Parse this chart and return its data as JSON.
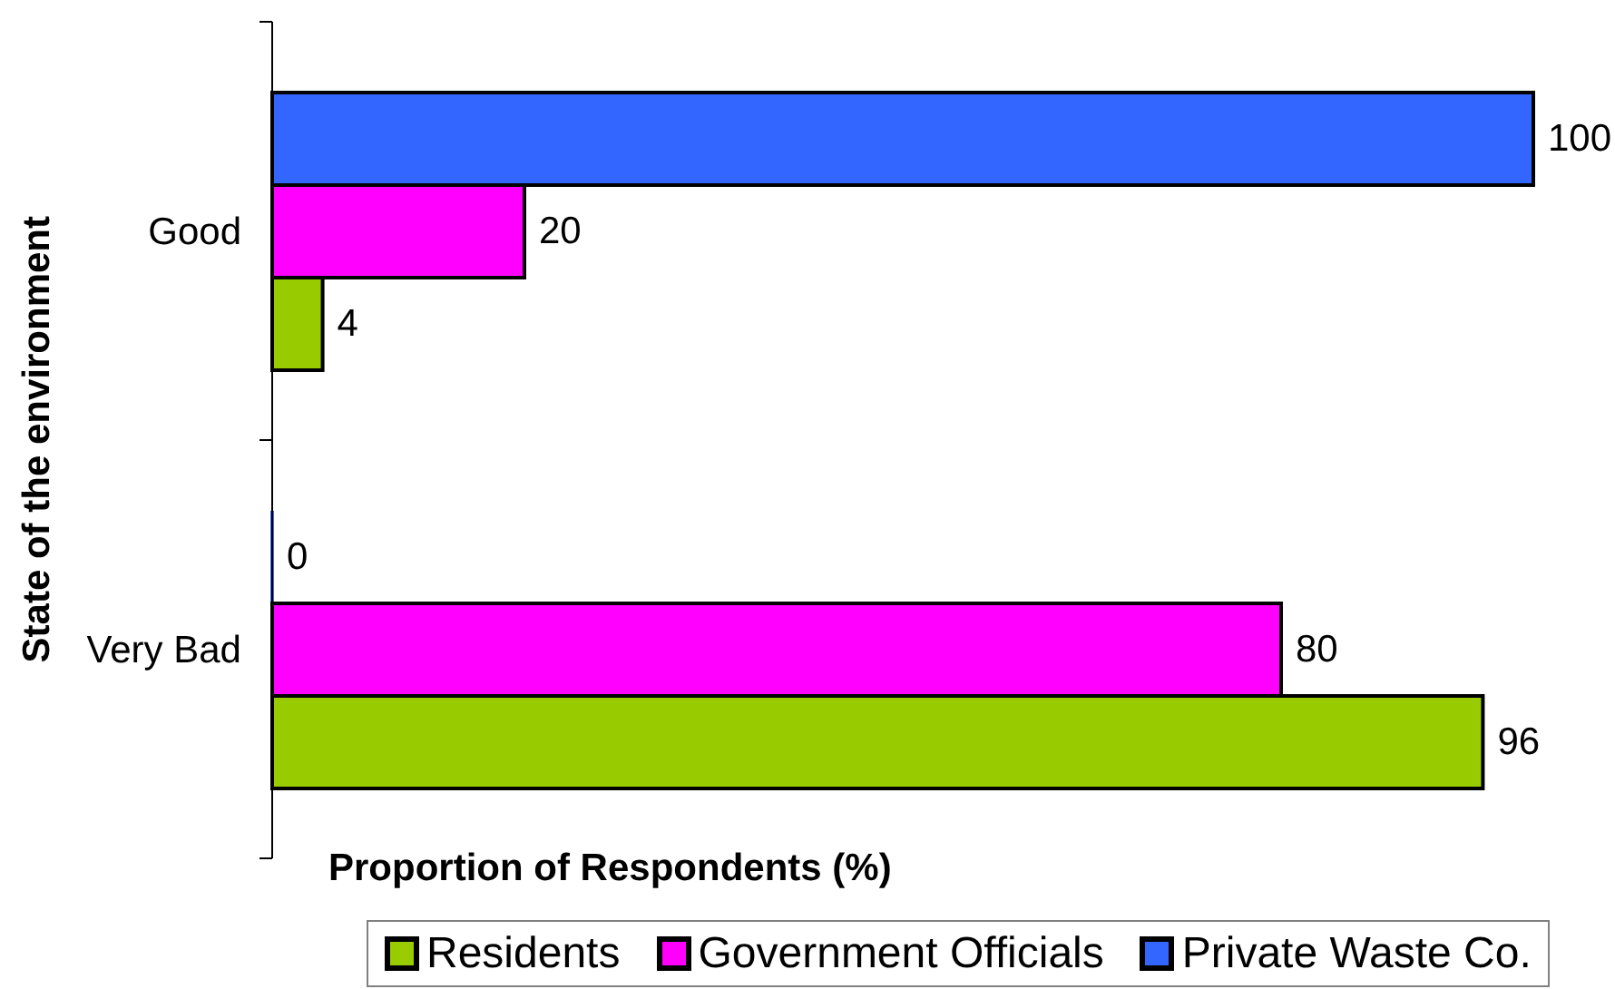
{
  "chart_data": {
    "type": "bar",
    "orientation": "horizontal",
    "xlabel": "Proportion of Respondents (%)",
    "ylabel": "State of the environment",
    "categories": [
      "Good",
      "Very Bad"
    ],
    "series": [
      {
        "name": "Residents",
        "color": "#99cc00",
        "values": [
          4,
          96
        ]
      },
      {
        "name": "Government Officials",
        "color": "#ff00ff",
        "values": [
          20,
          80
        ]
      },
      {
        "name": "Private Waste Co.",
        "color": "#3366ff",
        "values": [
          100,
          0
        ]
      }
    ],
    "data_labels": true,
    "legend": "bottom",
    "tick_labels": "y"
  }
}
